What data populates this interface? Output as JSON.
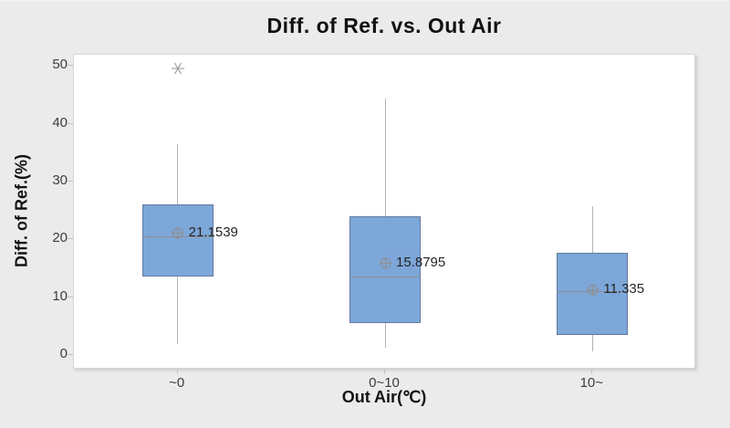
{
  "chart": {
    "title": "Diff. of Ref. vs. Out Air",
    "x_label": "Out Air(℃)",
    "y_label": "Diff. of Ref.(%)"
  },
  "chart_data": {
    "type": "boxplot",
    "title": "Diff. of Ref. vs. Out Air",
    "xlabel": "Out Air(℃)",
    "ylabel": "Diff. of Ref.(%)",
    "ylim": [
      0,
      50
    ],
    "yticks": [
      "0",
      "10",
      "20",
      "30",
      "40",
      "50"
    ],
    "ytick_values": [
      0,
      10,
      20,
      30,
      40,
      50
    ],
    "grid": false,
    "legend": false,
    "categories": [
      "~0",
      "0~10",
      "10~"
    ],
    "boxes": [
      {
        "category": "~0",
        "whisker_low": 1.9,
        "q1": 13.5,
        "median": 20.6,
        "q3": 26.1,
        "whisker_high": 36.4,
        "mean": 21.1539,
        "mean_label": "21.1539",
        "outliers": [
          49.5
        ]
      },
      {
        "category": "0~10",
        "whisker_low": 1.2,
        "q1": 5.5,
        "median": 13.5,
        "q3": 24.0,
        "whisker_high": 44.3,
        "mean": 15.8795,
        "mean_label": "15.8795",
        "outliers": []
      },
      {
        "category": "10~",
        "whisker_low": 0.7,
        "q1": 3.5,
        "median": 11.1,
        "q3": 17.7,
        "whisker_high": 25.7,
        "mean": 11.335,
        "mean_label": "11.335",
        "outliers": []
      }
    ],
    "colors": {
      "background": "#EBEBEB",
      "plot_background": "#FFFFFF",
      "box_fill": "#7DA7D9",
      "box_border": "#62799F",
      "median_line": "#8A8F96",
      "whisker": "#B3B3B3",
      "mean_marker": "#8F8F8F",
      "outlier": "#9A9A9A",
      "text": "#121212"
    }
  }
}
